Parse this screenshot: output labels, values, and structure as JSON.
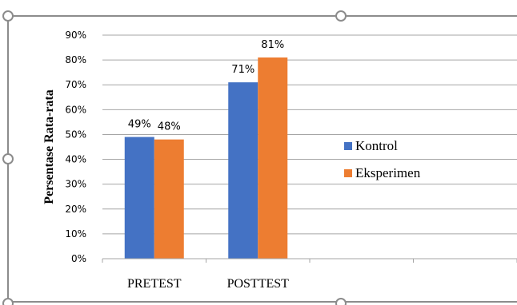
{
  "chart_data": {
    "type": "bar",
    "categories": [
      "PRETEST",
      "POSTTEST",
      "",
      ""
    ],
    "series": [
      {
        "name": "Kontrol",
        "values": [
          49,
          71,
          null,
          null
        ],
        "labels": [
          "49%",
          "71%",
          "",
          ""
        ],
        "color": "#4472C4"
      },
      {
        "name": "Eksperimen",
        "values": [
          48,
          81,
          null,
          null
        ],
        "labels": [
          "48%",
          "81%",
          "",
          ""
        ],
        "color": "#ED7D31"
      }
    ],
    "title": "",
    "xlabel": "",
    "ylabel": "Persentase Rata-rata",
    "ylim": [
      0,
      90
    ],
    "yticks": [
      "0%",
      "10%",
      "20%",
      "30%",
      "40%",
      "50%",
      "60%",
      "70%",
      "80%",
      "90%"
    ],
    "grid": true,
    "legend": "right"
  }
}
